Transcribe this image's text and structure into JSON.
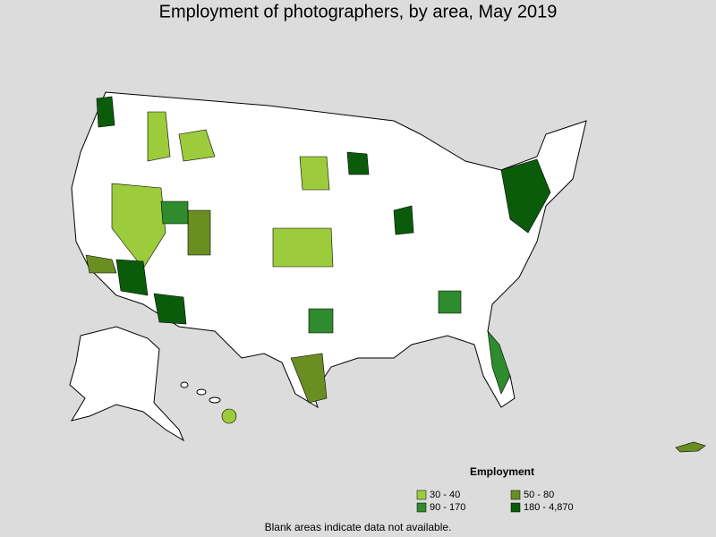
{
  "title": "Employment of photographers, by area, May 2019",
  "legend": {
    "title": "Employment",
    "items": [
      {
        "label": "30 - 40",
        "color": "#9ccc3c"
      },
      {
        "label": "50 - 80",
        "color": "#6b8e23"
      },
      {
        "label": "90 - 170",
        "color": "#2e8b2e"
      },
      {
        "label": "180 - 4,870",
        "color": "#0a5c0a"
      }
    ]
  },
  "note": "Blank areas indicate data not available."
}
